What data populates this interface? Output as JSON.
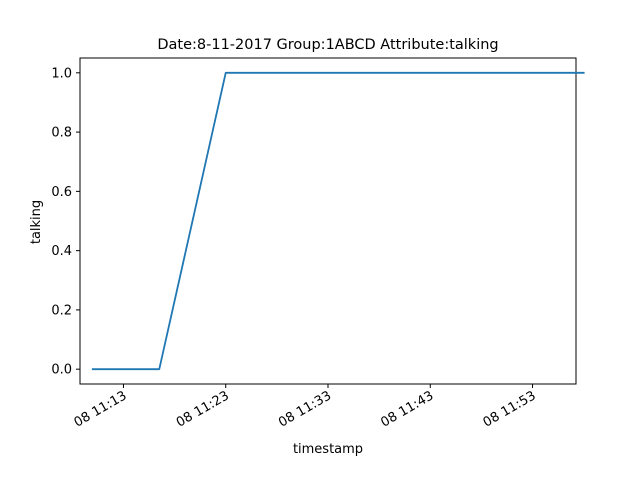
{
  "chart_data": {
    "type": "line",
    "title": "Date:8-11-2017  Group:1ABCD Attribute:talking",
    "xlabel": "timestamp",
    "ylabel": "talking",
    "x_tick_labels": [
      "08 11:13",
      "08 11:23",
      "08 11:33",
      "08 11:43",
      "08 11:53"
    ],
    "x_ticks_minutes": [
      13,
      23,
      33,
      43,
      53
    ],
    "y_tick_labels": [
      "0.0",
      "0.2",
      "0.4",
      "0.6",
      "0.8",
      "1.0"
    ],
    "y_ticks": [
      0.0,
      0.2,
      0.4,
      0.6,
      0.8,
      1.0
    ],
    "xlim_minutes": [
      8.75,
      57.25
    ],
    "ylim": [
      -0.05,
      1.05
    ],
    "grid": false,
    "series": [
      {
        "color": "#1f77b4",
        "x_minutes": [
          10,
          16.5,
          23,
          58
        ],
        "y": [
          0,
          0,
          1,
          1
        ]
      }
    ]
  }
}
